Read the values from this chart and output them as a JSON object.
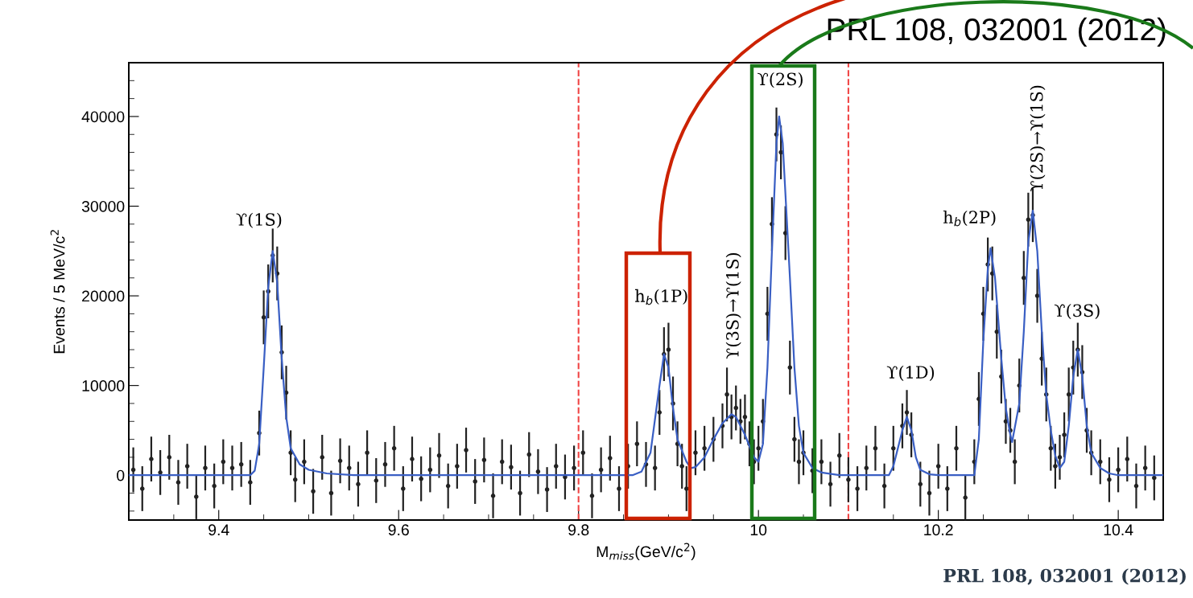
{
  "chart_data": {
    "type": "scatter",
    "title": "PRL 108, 032001 (2012)",
    "xlabel": "M$_{miss}$(GeV/c$^{2}$)",
    "ylabel": "Events / 5 MeV/c$^{2}$",
    "xlim": [
      9.3,
      10.45
    ],
    "xticks": [
      9.4,
      9.6,
      9.8,
      10,
      10.2,
      10.4
    ],
    "ylim": [
      -5000,
      46000
    ],
    "yticks": [
      0,
      10000,
      20000,
      30000,
      40000
    ],
    "ref_lines": [
      {
        "axis": "x",
        "value": 9.8,
        "color": "#f04545",
        "line_style": "dashed"
      },
      {
        "axis": "x",
        "value": 10.1,
        "color": "#f04545",
        "line_style": "dashed"
      }
    ],
    "annotations": [
      "PRL 108, 032001 (2012)",
      "ϒ(1S)",
      "h$_{b}$(1P)",
      "ϒ(2S)",
      "ϒ(1D)",
      "h$_{b}$(2P)",
      "ϒ(3S)",
      "ϒ(3S)→ϒ(1S)",
      "ϒ(2S)→ϒ(1S)"
    ],
    "series": [
      {
        "color": "#222222",
        "marker": "circle",
        "x": [
          9.305,
          9.315,
          9.325,
          9.335,
          9.345,
          9.355,
          9.365,
          9.375,
          9.385,
          9.395,
          9.405,
          9.415,
          9.425,
          9.435,
          9.445,
          9.45,
          9.455,
          9.46,
          9.465,
          9.47,
          9.475,
          9.48,
          9.485,
          9.495,
          9.505,
          9.515,
          9.525,
          9.535,
          9.545,
          9.555,
          9.565,
          9.575,
          9.585,
          9.595,
          9.605,
          9.615,
          9.625,
          9.635,
          9.645,
          9.655,
          9.665,
          9.675,
          9.685,
          9.695,
          9.705,
          9.715,
          9.725,
          9.735,
          9.745,
          9.755,
          9.765,
          9.775,
          9.785,
          9.795,
          9.805,
          9.815,
          9.825,
          9.835,
          9.845,
          9.855,
          9.865,
          9.875,
          9.885,
          9.89,
          9.895,
          9.9,
          9.905,
          9.91,
          9.915,
          9.92,
          9.93,
          9.94,
          9.95,
          9.96,
          9.965,
          9.97,
          9.975,
          9.98,
          9.985,
          9.99,
          9.995,
          10.0,
          10.005,
          10.01,
          10.015,
          10.02,
          10.025,
          10.03,
          10.035,
          10.04,
          10.045,
          10.05,
          10.06,
          10.07,
          10.08,
          10.09,
          10.1,
          10.11,
          10.12,
          10.13,
          10.14,
          10.15,
          10.16,
          10.165,
          10.17,
          10.18,
          10.19,
          10.2,
          10.21,
          10.22,
          10.23,
          10.24,
          10.245,
          10.25,
          10.255,
          10.26,
          10.265,
          10.27,
          10.275,
          10.28,
          10.285,
          10.29,
          10.295,
          10.3,
          10.305,
          10.31,
          10.315,
          10.32,
          10.325,
          10.33,
          10.335,
          10.34,
          10.345,
          10.35,
          10.355,
          10.36,
          10.365,
          10.37,
          10.38,
          10.39,
          10.4,
          10.41,
          10.42,
          10.43,
          10.44
        ],
        "values": [
          600,
          -1500,
          1800,
          300,
          2000,
          -800,
          1000,
          -2400,
          800,
          -1200,
          1500,
          800,
          1200,
          -800,
          4700,
          17600,
          20500,
          24500,
          22500,
          13700,
          9200,
          2500,
          -500,
          1500,
          -1800,
          2000,
          -2000,
          1600,
          800,
          -1000,
          2500,
          -600,
          1200,
          3000,
          -1500,
          1800,
          -400,
          600,
          2200,
          -1200,
          1000,
          2800,
          -700,
          1700,
          -2300,
          1500,
          900,
          -2000,
          2300,
          400,
          -1600,
          1000,
          -200,
          800,
          2500,
          -2300,
          600,
          1900,
          -1500,
          1000,
          3500,
          1200,
          800,
          7000,
          13500,
          14000,
          8000,
          3500,
          1000,
          -1500,
          2500,
          3000,
          4000,
          5500,
          9000,
          6500,
          7500,
          6000,
          6500,
          3500,
          1500,
          3000,
          6000,
          18000,
          28000,
          38000,
          36000,
          27000,
          12000,
          4000,
          1500,
          2500,
          500,
          1500,
          -1000,
          2200,
          -500,
          -1500,
          800,
          3000,
          -1200,
          3000,
          5500,
          7000,
          4500,
          -1000,
          -2000,
          1000,
          -1500,
          3000,
          -2500,
          1500,
          8500,
          18000,
          23500,
          22500,
          16000,
          11000,
          6000,
          5000,
          1500,
          10000,
          22000,
          28500,
          29000,
          20000,
          13000,
          9000,
          3000,
          1000,
          2000,
          4500,
          9000,
          12000,
          14000,
          11500,
          5000,
          2500,
          1500,
          -500,
          600,
          1800,
          -1200,
          800,
          -300
        ],
        "errors": [
          2500,
          2500,
          2500,
          2500,
          2500,
          2500,
          2500,
          2500,
          2500,
          2500,
          2500,
          2500,
          2500,
          2500,
          2500,
          3000,
          3000,
          3000,
          3000,
          3000,
          3000,
          2500,
          2500,
          2500,
          2500,
          2500,
          2500,
          2500,
          2500,
          2500,
          2500,
          2500,
          2500,
          2500,
          2500,
          2500,
          2500,
          2500,
          2500,
          2500,
          2500,
          2500,
          2500,
          2500,
          2500,
          2500,
          2500,
          2500,
          2500,
          2500,
          2500,
          2500,
          2500,
          2500,
          2500,
          2500,
          2500,
          2500,
          2500,
          2500,
          2500,
          2500,
          2500,
          2500,
          3000,
          3000,
          3000,
          2500,
          2500,
          2500,
          2500,
          2500,
          2500,
          2500,
          3000,
          2500,
          2500,
          2500,
          2500,
          2500,
          2500,
          2500,
          2500,
          3000,
          3000,
          3000,
          3000,
          3000,
          3000,
          2500,
          2500,
          2500,
          2500,
          2500,
          2500,
          2500,
          2500,
          2500,
          2500,
          2500,
          2500,
          2500,
          2500,
          2500,
          2500,
          2500,
          2500,
          2500,
          2500,
          2500,
          2500,
          2500,
          3000,
          3000,
          3000,
          3000,
          3000,
          3000,
          2500,
          2500,
          2500,
          3000,
          3000,
          3000,
          3000,
          3000,
          3000,
          3000,
          2500,
          2500,
          2500,
          2500,
          3000,
          3000,
          3000,
          3000,
          2500,
          2500,
          2500,
          2500,
          2500,
          2500,
          2500,
          2500,
          2500
        ]
      },
      {
        "type": "line",
        "color": "#3a5fc4",
        "x": [
          9.3,
          9.435,
          9.44,
          9.445,
          9.45,
          9.455,
          9.46,
          9.465,
          9.47,
          9.475,
          9.48,
          9.49,
          9.5,
          9.52,
          9.55,
          9.86,
          9.87,
          9.88,
          9.89,
          9.895,
          9.9,
          9.905,
          9.91,
          9.92,
          9.925,
          9.93,
          9.94,
          9.95,
          9.96,
          9.97,
          9.975,
          9.985,
          9.995,
          10.0,
          10.005,
          10.01,
          10.015,
          10.02,
          10.023,
          10.027,
          10.035,
          10.04,
          10.045,
          10.05,
          10.06,
          10.07,
          10.09,
          10.145,
          10.15,
          10.16,
          10.165,
          10.17,
          10.175,
          10.18,
          10.19,
          10.2,
          10.24,
          10.245,
          10.25,
          10.255,
          10.258,
          10.263,
          10.27,
          10.275,
          10.28,
          10.282,
          10.29,
          10.295,
          10.3,
          10.305,
          10.31,
          10.315,
          10.32,
          10.325,
          10.33,
          10.335,
          10.34,
          10.345,
          10.35,
          10.355,
          10.36,
          10.365,
          10.37,
          10.38,
          10.39,
          10.4,
          10.45
        ],
        "values": [
          0,
          0,
          500,
          3500,
          12000,
          21000,
          25000,
          21500,
          13000,
          6500,
          3000,
          1200,
          600,
          200,
          0,
          0,
          400,
          2500,
          10000,
          13500,
          12000,
          7500,
          4000,
          1500,
          800,
          900,
          2000,
          4000,
          5800,
          6800,
          6500,
          4500,
          2000,
          1500,
          3500,
          12000,
          25000,
          37000,
          40000,
          37000,
          22000,
          12000,
          5500,
          2500,
          800,
          300,
          0,
          0,
          1000,
          5000,
          6500,
          5000,
          2000,
          600,
          100,
          0,
          0,
          4000,
          15000,
          23000,
          25300,
          22000,
          13000,
          7500,
          4500,
          3700,
          8000,
          16000,
          26000,
          29500,
          25000,
          16000,
          9000,
          5000,
          2200,
          800,
          1500,
          5500,
          11000,
          14000,
          11000,
          5500,
          2500,
          800,
          200,
          0,
          0
        ]
      }
    ]
  }
}
